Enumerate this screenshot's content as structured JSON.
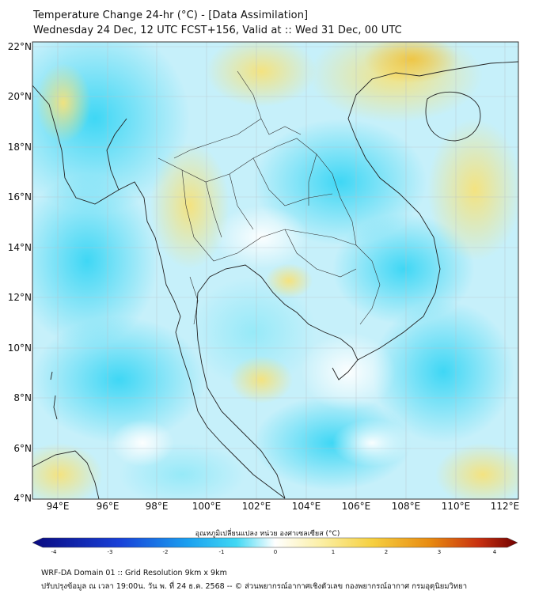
{
  "title_line1": "Temperature Change 24-hr (°C) - [Data Assimilation]",
  "title_line2": "Wednesday 24 Dec, 12 UTC FCST+156, Valid at :: Wed 31 Dec, 00 UTC",
  "map": {
    "lat_labels": [
      "22°N",
      "20°N",
      "18°N",
      "16°N",
      "14°N",
      "12°N",
      "10°N",
      "8°N",
      "6°N",
      "4°N"
    ],
    "lon_labels": [
      "94°E",
      "96°E",
      "98°E",
      "100°E",
      "102°E",
      "104°E",
      "106°E",
      "108°E",
      "110°E",
      "112°E"
    ],
    "lat_range": [
      4,
      22.3
    ],
    "lon_range": [
      93,
      112.6
    ]
  },
  "colorbar": {
    "title": "อุณหภูมิเปลี่ยนแปลง หน่วย องศาเซลเซียส (°C)",
    "ticks": [
      "-4",
      "-3",
      "-2",
      "-1",
      "0",
      "1",
      "2",
      "3",
      "4"
    ],
    "range": [
      -4,
      4
    ],
    "colors": {
      "min": "#0a0a80",
      "cold": "#1a60e8",
      "cool": "#2ed0f0",
      "neutral": "#ffffff",
      "warm": "#f8e060",
      "hot": "#e08000",
      "max": "#700000"
    }
  },
  "footer_line1": "WRF-DA Domain 01 :: Grid Resolution 9km x 9km",
  "footer_line2": "ปรับปรุงข้อมูล ณ เวลา 19:00น. วัน พ. ที่ 24 ธ.ค. 2568 -- © ส่วนพยากรณ์อากาศเชิงตัวเลข กองพยากรณ์อากาศ กรมอุตุนิยมวิทยา"
}
